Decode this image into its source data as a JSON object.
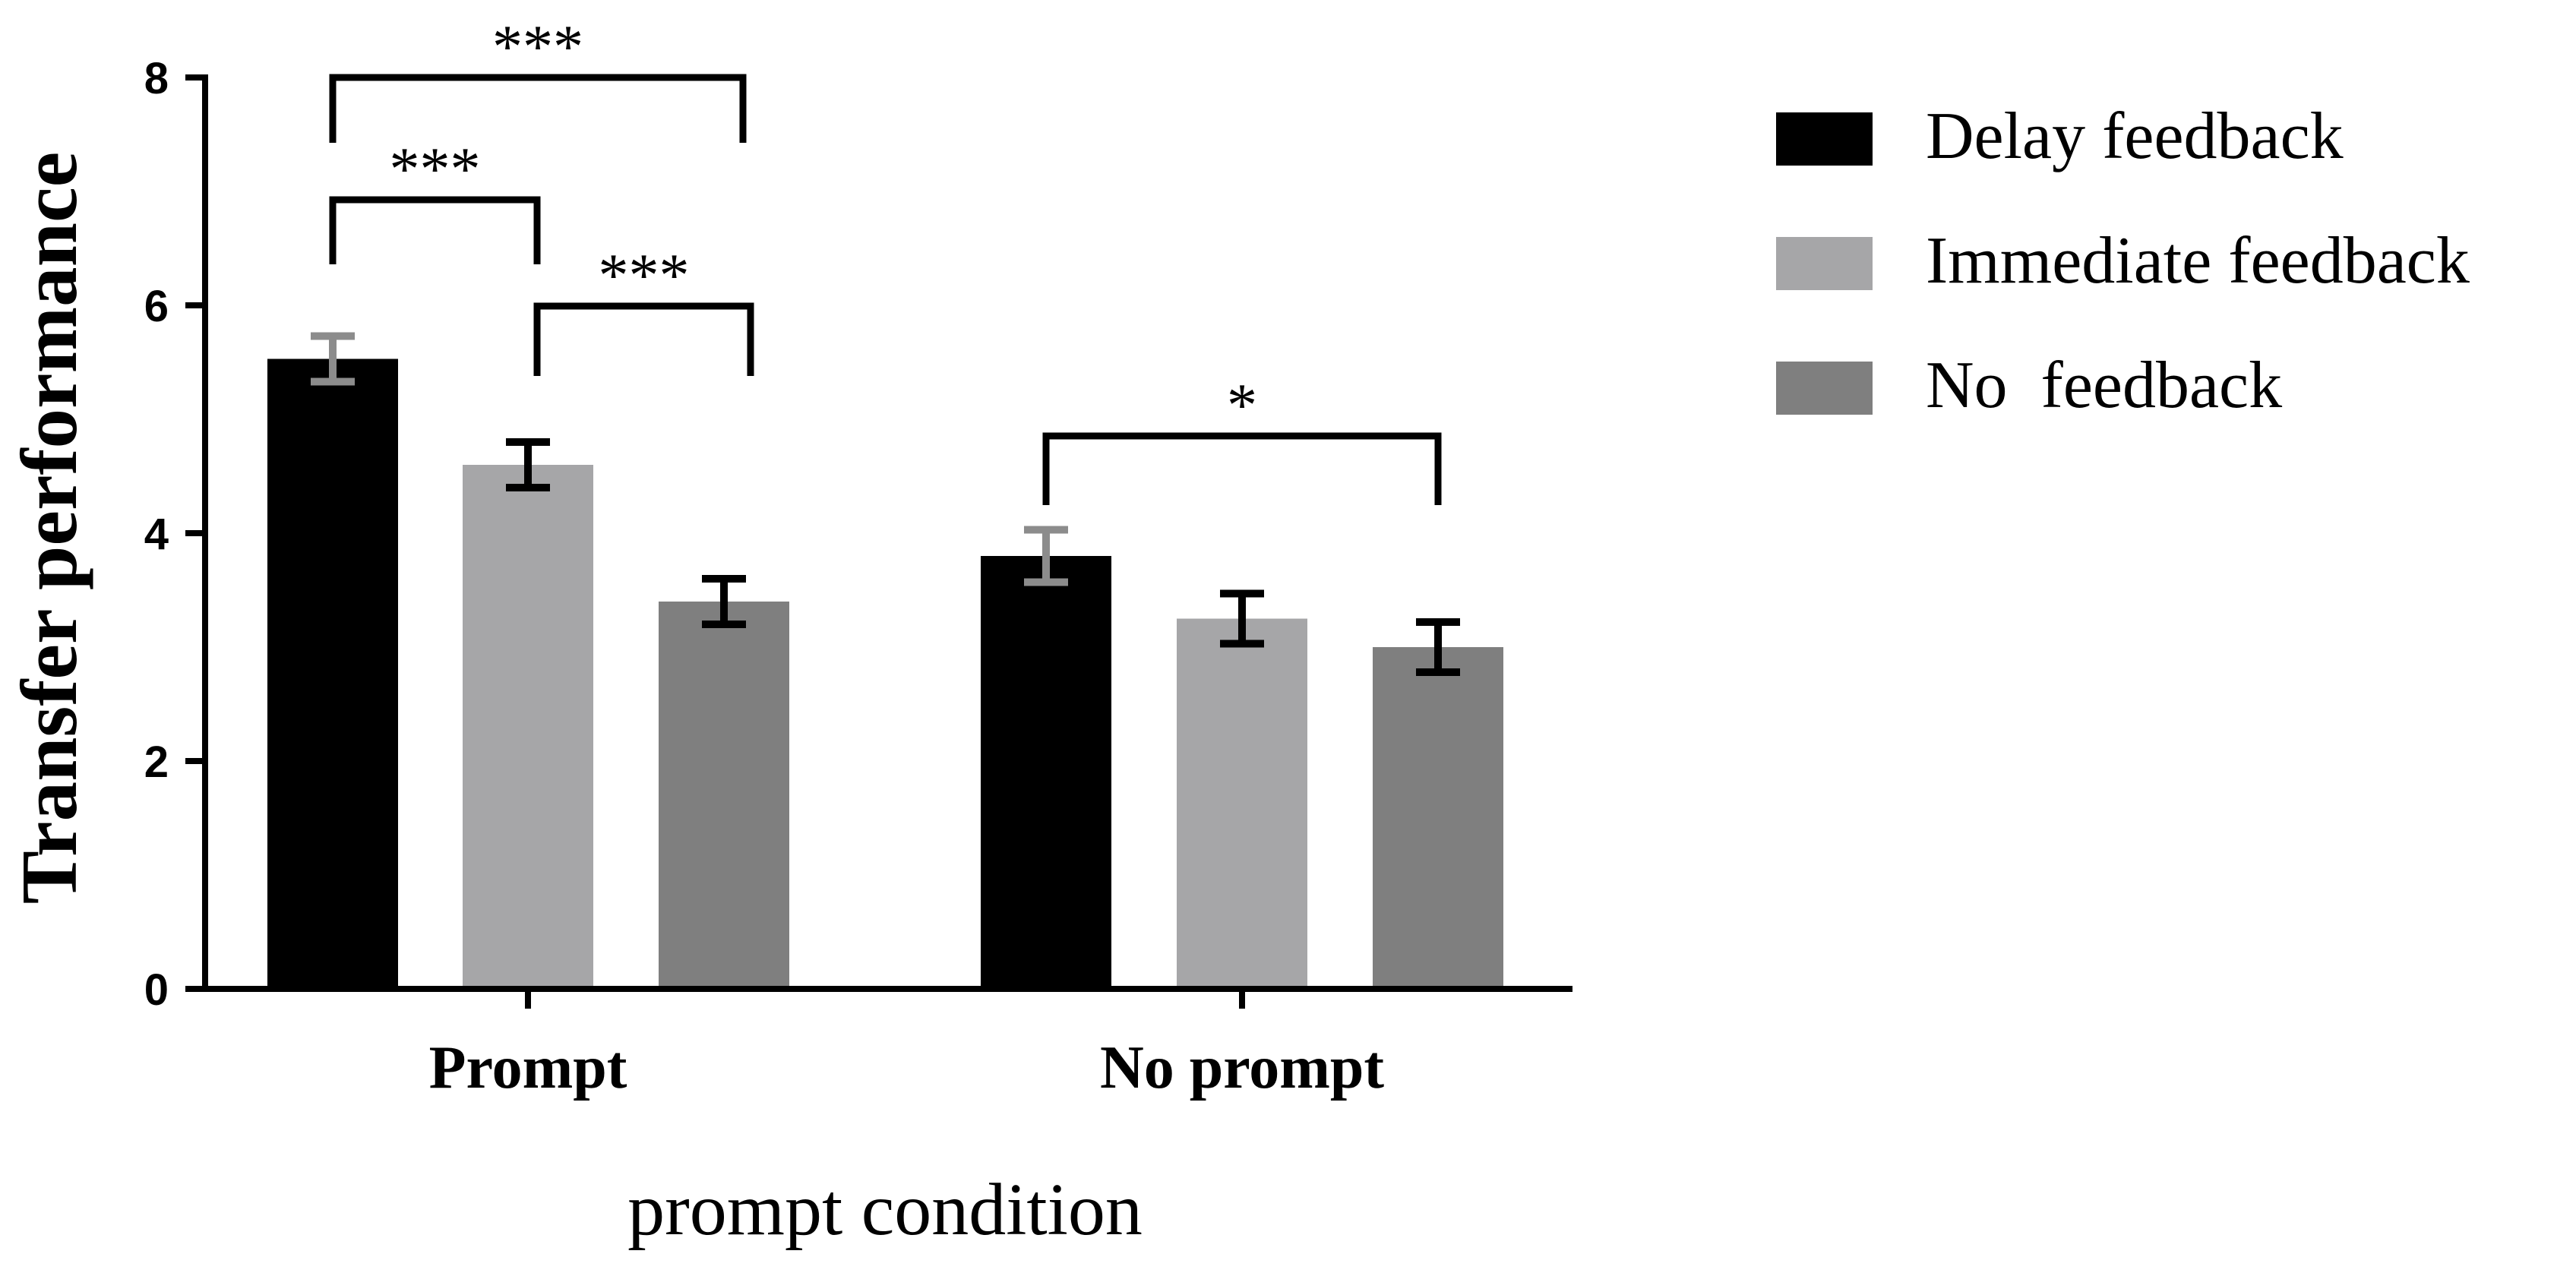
{
  "chart_data": {
    "type": "bar",
    "categories": [
      "Prompt",
      "No prompt"
    ],
    "series": [
      {
        "name": "Delay feedback",
        "values": [
          5.53,
          3.8
        ],
        "errors": [
          0.2,
          0.23
        ],
        "color": "#000000",
        "error_color": "#8c8c8c"
      },
      {
        "name": "Immediate feedback",
        "values": [
          4.6,
          3.25
        ],
        "errors": [
          0.2,
          0.22
        ],
        "color": "#a6a6a8",
        "error_color": "#000000"
      },
      {
        "name": "No  feedback",
        "values": [
          3.4,
          3.0
        ],
        "errors": [
          0.2,
          0.22
        ],
        "color": "#7f7f7f",
        "error_color": "#000000"
      }
    ],
    "ylim": [
      0,
      8
    ],
    "yticks": [
      "0",
      "2",
      "4",
      "6",
      "8"
    ],
    "ylabel": "Transfer performance",
    "xlabel": "prompt condition",
    "legend_position": "right",
    "grid": false,
    "significance": [
      {
        "category": 0,
        "from_series": 0,
        "to_series": 2,
        "label": "***"
      },
      {
        "category": 0,
        "from_series": 0,
        "to_series": 1,
        "label": "***"
      },
      {
        "category": 0,
        "from_series": 1,
        "to_series": 2,
        "label": "***"
      },
      {
        "category": 1,
        "from_series": 0,
        "to_series": 2,
        "label": "*"
      }
    ]
  }
}
